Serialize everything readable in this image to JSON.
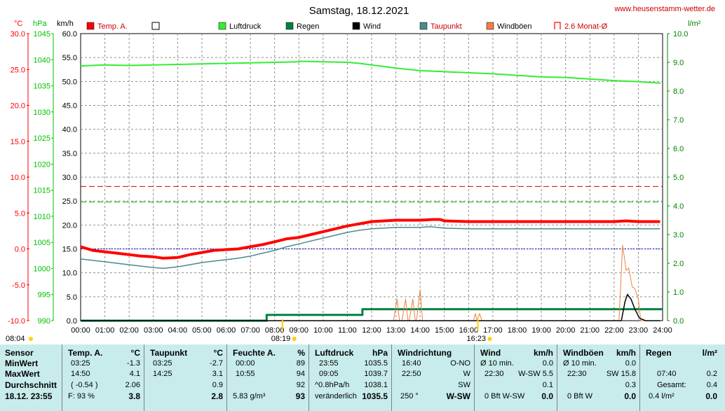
{
  "chart_data": {
    "type": "line",
    "title": "Samstag, 18.12.2021",
    "website": "www.heusenstamm-wetter.de",
    "x_ticks": [
      "00:00",
      "01:00",
      "02:00",
      "03:00",
      "04:00",
      "05:00",
      "06:00",
      "07:00",
      "08:00",
      "09:00",
      "10:00",
      "11:00",
      "12:00",
      "13:00",
      "14:00",
      "15:00",
      "16:00",
      "17:00",
      "18:00",
      "19:00",
      "20:00",
      "21:00",
      "22:00",
      "23:00",
      "24:00"
    ],
    "axes": {
      "temp": {
        "unit": "°C",
        "range": [
          -10,
          30
        ],
        "ticks": [
          "30.0",
          "25.0",
          "20.0",
          "15.0",
          "10.0",
          "5.0",
          "0.0",
          "-5.0",
          "-10.0"
        ],
        "color": "#ff0000"
      },
      "pressure": {
        "unit": "hPa",
        "range": [
          990,
          1045
        ],
        "ticks": [
          "1045",
          "1040",
          "1035",
          "1030",
          "1025",
          "1020",
          "1015",
          "1010",
          "1005",
          "1000",
          "995",
          "990"
        ],
        "color": "#00c000"
      },
      "wind": {
        "unit": "km/h",
        "range": [
          0,
          60
        ],
        "ticks": [
          "60.0",
          "55.0",
          "50.0",
          "45.0",
          "40.0",
          "35.0",
          "30.0",
          "25.0",
          "20.0",
          "15.0",
          "10.0",
          "5.0",
          "0.0"
        ],
        "color": "#000000"
      },
      "rain": {
        "unit": "l/m²",
        "range": [
          0,
          10
        ],
        "ticks": [
          "10.0",
          "9.0",
          "8.0",
          "7.0",
          "6.0",
          "5.0",
          "4.0",
          "3.0",
          "2.0",
          "1.0",
          "0.0"
        ],
        "color": "#008000"
      }
    },
    "legend": [
      {
        "name": "Temp. A.",
        "color": "#ff0000",
        "style": "filled"
      },
      {
        "name": "",
        "color": "#ffffff",
        "style": "box"
      },
      {
        "name": "Luftdruck",
        "color": "#33ee33",
        "style": "filled"
      },
      {
        "name": "Regen",
        "color": "#008040",
        "style": "filled"
      },
      {
        "name": "Wind",
        "color": "#000000",
        "style": "filled"
      },
      {
        "name": "Taupunkt",
        "color": "#4a8a8a",
        "style": "filled"
      },
      {
        "name": "Windböen",
        "color": "#f08040",
        "style": "filled"
      },
      {
        "name": "2.6 Monat-Ø",
        "color": "#ff0000",
        "style": "bracket"
      }
    ],
    "sun_events": [
      {
        "label": "08:04",
        "time": 0.0,
        "icon": "sun"
      },
      {
        "label": "08:19",
        "time": 8.32,
        "icon": "sun"
      },
      {
        "label": "16:23",
        "time": 16.38,
        "icon": "sun"
      }
    ],
    "reference_lines": [
      {
        "name": "monthly-mean-temp",
        "axis": "temp",
        "value": 8.7,
        "color": "#cc0000",
        "style": "dashed"
      },
      {
        "name": "zero-line",
        "axis": "temp",
        "value": 0.0,
        "color": "#0000cc",
        "style": "dotted"
      },
      {
        "name": "wind-reference",
        "axis": "wind",
        "value": 24.8,
        "color": "#00c000",
        "style": "dashed"
      }
    ],
    "series": [
      {
        "name": "Temp. A.",
        "axis": "temp",
        "color": "#ff0000",
        "width": 4,
        "x": [
          0,
          0.5,
          1,
          1.5,
          2,
          2.5,
          3,
          3.42,
          4,
          4.5,
          5,
          5.5,
          6,
          6.5,
          7,
          7.5,
          8,
          8.5,
          9,
          9.5,
          10,
          10.5,
          11,
          11.5,
          12,
          12.5,
          13,
          13.5,
          14,
          14.5,
          14.83,
          15,
          16,
          17,
          18,
          19,
          20,
          21,
          22,
          22.5,
          23,
          23.5,
          23.9
        ],
        "y": [
          0.3,
          -0.2,
          -0.4,
          -0.6,
          -0.8,
          -1.0,
          -1.1,
          -1.3,
          -1.2,
          -0.8,
          -0.5,
          -0.2,
          -0.1,
          0.0,
          0.3,
          0.6,
          1.0,
          1.4,
          1.6,
          2.0,
          2.4,
          2.8,
          3.2,
          3.5,
          3.8,
          3.9,
          4.0,
          4.0,
          4.0,
          4.1,
          4.1,
          3.9,
          3.8,
          3.8,
          3.8,
          3.8,
          3.8,
          3.8,
          3.8,
          3.9,
          3.8,
          3.8,
          3.8
        ]
      },
      {
        "name": "Taupunkt",
        "axis": "temp",
        "color": "#4a8a8a",
        "width": 1.5,
        "x": [
          0,
          0.5,
          1,
          1.5,
          2,
          2.5,
          3,
          3.42,
          4,
          4.5,
          5,
          5.5,
          6,
          6.5,
          7,
          7.5,
          8,
          8.5,
          9,
          9.5,
          10,
          10.5,
          11,
          11.5,
          12,
          12.5,
          13,
          13.5,
          14,
          14.42,
          15,
          16,
          17,
          18,
          19,
          20,
          21,
          22,
          23,
          23.9
        ],
        "y": [
          -1.4,
          -1.6,
          -1.8,
          -2.0,
          -2.2,
          -2.4,
          -2.6,
          -2.7,
          -2.5,
          -2.2,
          -1.9,
          -1.7,
          -1.5,
          -1.3,
          -1.0,
          -0.6,
          -0.2,
          0.3,
          0.7,
          1.1,
          1.5,
          1.9,
          2.3,
          2.6,
          2.8,
          2.9,
          3.0,
          3.0,
          3.0,
          3.1,
          2.9,
          2.8,
          2.8,
          2.8,
          2.8,
          2.8,
          2.8,
          2.8,
          2.8,
          2.8
        ]
      },
      {
        "name": "Luftdruck",
        "axis": "pressure",
        "color": "#33ee33",
        "width": 2,
        "x": [
          0,
          1,
          2,
          3,
          4,
          5,
          6,
          7,
          8,
          9,
          9.08,
          10,
          11,
          11.5,
          12,
          13,
          14,
          15,
          16,
          17,
          18,
          19,
          20,
          21,
          22,
          23,
          23.92
        ],
        "y": [
          1038.8,
          1039.0,
          1038.9,
          1039.0,
          1039.1,
          1039.2,
          1039.3,
          1039.4,
          1039.5,
          1039.6,
          1039.7,
          1039.6,
          1039.5,
          1039.3,
          1039.0,
          1038.4,
          1037.9,
          1037.7,
          1037.5,
          1037.3,
          1037.0,
          1036.7,
          1036.6,
          1036.3,
          1036.0,
          1035.8,
          1035.5
        ]
      },
      {
        "name": "Regen",
        "axis": "rain",
        "color": "#008040",
        "width": 3,
        "step": true,
        "x": [
          0,
          7.5,
          7.67,
          11.5,
          11.62,
          24.0
        ],
        "y": [
          0,
          0,
          0.2,
          0.2,
          0.4,
          0.4
        ]
      },
      {
        "name": "Windböen",
        "axis": "wind",
        "color": "#f08040",
        "width": 1,
        "x": [
          0,
          12.9,
          13.05,
          13.15,
          13.25,
          13.4,
          13.5,
          13.55,
          13.7,
          13.8,
          13.85,
          14.0,
          14.1,
          14.5,
          16.2,
          16.28,
          16.35,
          16.45,
          16.55,
          22.2,
          22.35,
          22.5,
          22.6,
          22.75,
          22.85,
          23.0,
          23.1,
          23.3,
          23.9
        ],
        "y": [
          0,
          0,
          4.5,
          0,
          0,
          4.5,
          0,
          0,
          4.5,
          0,
          0,
          6.5,
          0,
          0,
          0,
          1.5,
          0,
          1.5,
          0,
          0,
          15.8,
          10.5,
          11.0,
          7.0,
          6.8,
          4.5,
          0,
          0,
          0
        ]
      },
      {
        "name": "Wind",
        "axis": "wind",
        "color": "#000000",
        "width": 1.5,
        "x": [
          0,
          22.3,
          22.45,
          22.55,
          22.7,
          22.85,
          23.05,
          23.3,
          23.9
        ],
        "y": [
          0,
          0,
          4.0,
          5.5,
          4.5,
          2.5,
          0.5,
          0,
          0
        ]
      }
    ]
  },
  "table": {
    "row_labels": {
      "header": "Sensor",
      "min": "MinWert",
      "max": "MaxWert",
      "avg": "Durchschnitt",
      "now": "18.12.  23:55"
    },
    "temp": {
      "header": "Temp. A.",
      "unit": "°C",
      "min_time": "03:25",
      "min_val": "-1.3",
      "max_time": "14:50",
      "max_val": "4.1",
      "avg_time": "( -0.54 )",
      "avg_val": "2.06",
      "now_extra": "F: 93 %",
      "now_val": "3.8"
    },
    "dew": {
      "header": "Taupunkt",
      "unit": "°C",
      "min_time": "03:25",
      "min_val": "-2.7",
      "max_time": "14:25",
      "max_val": "3.1",
      "avg_val": "0.9",
      "now_val": "2.8"
    },
    "hum": {
      "header": "Feuchte A.",
      "unit": "%",
      "min_time": "00:00",
      "min_val": "89",
      "max_time": "10:55",
      "max_val": "94",
      "avg_val": "92",
      "now_extra": "5.83 g/m³",
      "now_val": "93"
    },
    "press": {
      "header": "Luftdruck",
      "unit": "hPa",
      "min_time": "23:55",
      "min_val": "1035.5",
      "max_time": "09:05",
      "max_val": "1039.7",
      "avg_time": "^0.8hPa/h",
      "avg_val": "1038.1",
      "now_extra": "veränderlich",
      "now_val": "1035.5"
    },
    "dir": {
      "header": "Windrichtung",
      "min_time": "16:40",
      "min_val": "O-NO",
      "max_time": "22:50",
      "max_val": "W",
      "avg_val": "SW",
      "now_extra": "250 °",
      "now_val": "W-SW"
    },
    "wind": {
      "header": "Wind",
      "unit": "km/h",
      "min_time": "Ø 10 min.",
      "min_val": "0.0",
      "max_time": "22:30",
      "max_extra": "W-SW 5.5",
      "avg_val": "0.1",
      "now_extra": "0 Bft W-SW",
      "now_val": "0.0"
    },
    "gust": {
      "header": "Windböen",
      "unit": "km/h",
      "min_time": "Ø 10 min.",
      "min_val": "0.0",
      "max_time": "22:30",
      "max_extra": "SW 15.8",
      "avg_val": "0.3",
      "now_extra": "0 Bft W",
      "now_val": "0.0"
    },
    "rain": {
      "header": "Regen",
      "unit": "l/m²",
      "max_time": "07:40",
      "max_val": "0.2",
      "avg_time": "Gesamt:",
      "avg_val": "0.4",
      "now_extra": "0.4 l/m²",
      "now_val": "0.0"
    }
  }
}
